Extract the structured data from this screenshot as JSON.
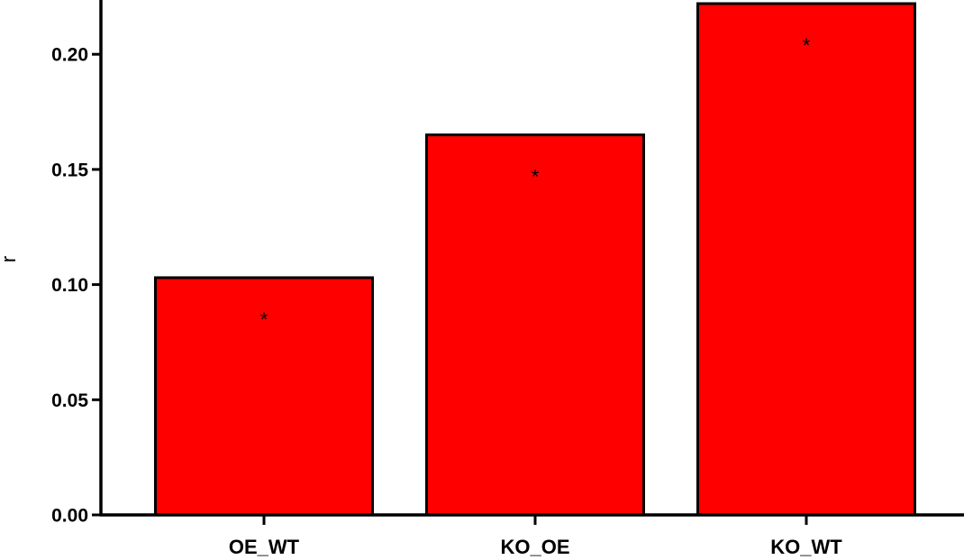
{
  "chart_data": {
    "type": "bar",
    "categories": [
      "OE_WT",
      "KO_OE",
      "KO_WT"
    ],
    "values": [
      0.103,
      0.165,
      0.222
    ],
    "annotations": [
      "*",
      "*",
      "*"
    ],
    "title": "",
    "xlabel": "",
    "ylabel": "r",
    "ylim": [
      0,
      0.222
    ],
    "yticks": [
      0.0,
      0.05,
      0.1,
      0.15,
      0.2
    ],
    "ytick_labels": [
      "0.00",
      "0.05",
      "0.10",
      "0.15",
      "0.20"
    ],
    "grid": false,
    "bar_color": "#ff0000",
    "edge_color": "#000000"
  }
}
